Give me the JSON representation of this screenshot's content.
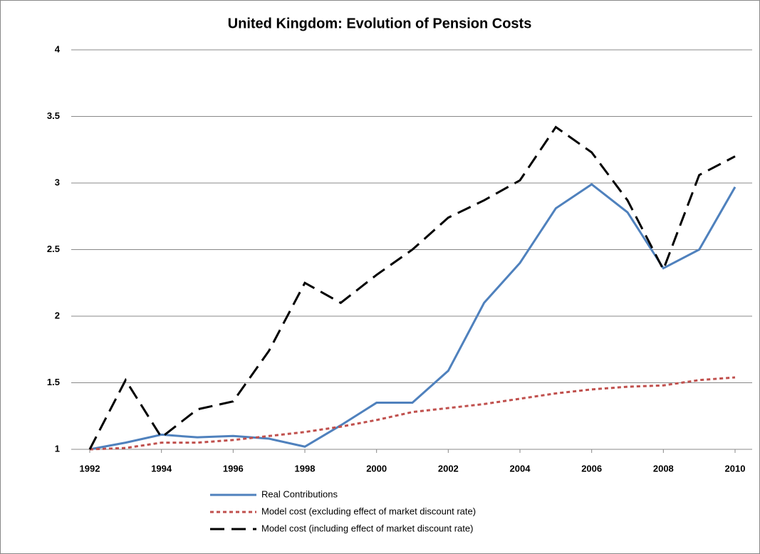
{
  "chart_data": {
    "type": "line",
    "title": "United Kingdom:  Evolution of Pension Costs",
    "x": [
      1992,
      1993,
      1994,
      1995,
      1996,
      1997,
      1998,
      1999,
      2000,
      2001,
      2002,
      2003,
      2004,
      2005,
      2006,
      2007,
      2008,
      2009,
      2010
    ],
    "xlim": [
      1992,
      2010
    ],
    "xticks": [
      1992,
      1994,
      1996,
      1998,
      2000,
      2002,
      2004,
      2006,
      2008,
      2010
    ],
    "ylim": [
      1,
      4
    ],
    "yticks": [
      1,
      1.5,
      2,
      2.5,
      3,
      3.5,
      4
    ],
    "grid": true,
    "legend": "bottom",
    "series": [
      {
        "name": "Real Contributions",
        "color": "#4f81bd",
        "dash": "solid",
        "values": [
          1.0,
          1.05,
          1.11,
          1.09,
          1.1,
          1.08,
          1.02,
          1.18,
          1.35,
          1.35,
          1.59,
          2.1,
          2.4,
          2.81,
          2.99,
          2.78,
          2.36,
          2.5,
          2.97
        ]
      },
      {
        "name": "Model cost (excluding effect of market discount rate)",
        "color": "#c0504d",
        "dash": "dot",
        "values": [
          1.0,
          1.01,
          1.05,
          1.05,
          1.07,
          1.1,
          1.13,
          1.17,
          1.22,
          1.28,
          1.31,
          1.34,
          1.38,
          1.42,
          1.45,
          1.47,
          1.48,
          1.52,
          1.54
        ]
      },
      {
        "name": "Model cost (including effect of market discount rate)",
        "color": "#000000",
        "dash": "dash",
        "values": [
          1.0,
          1.52,
          1.09,
          1.3,
          1.36,
          1.74,
          2.25,
          2.1,
          2.31,
          2.5,
          2.74,
          2.87,
          3.02,
          3.42,
          3.23,
          2.87,
          2.35,
          3.06,
          3.2
        ]
      }
    ]
  }
}
